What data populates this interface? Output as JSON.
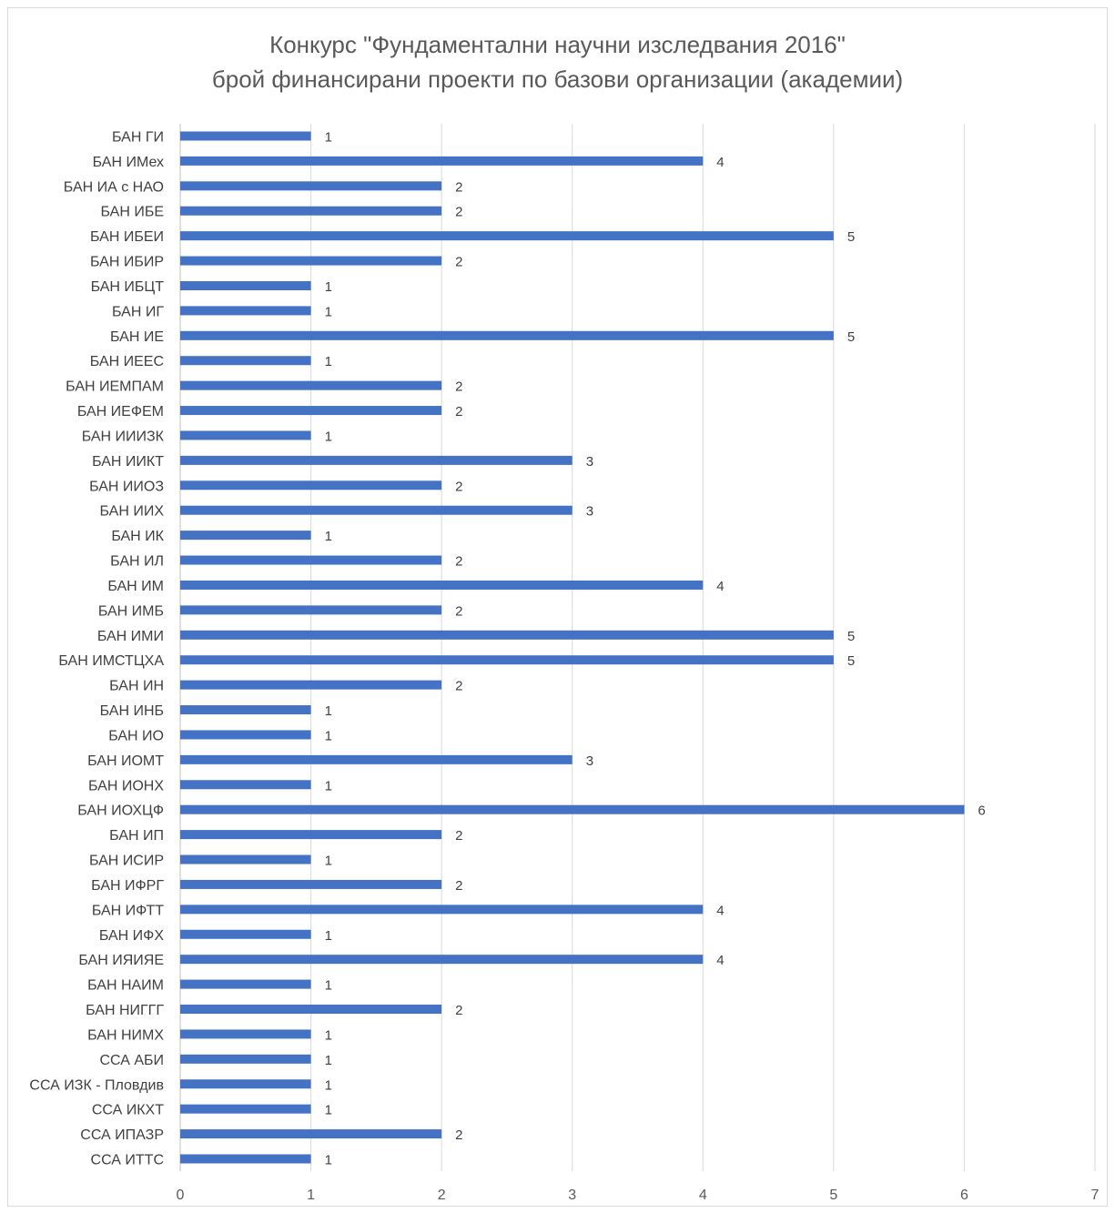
{
  "chart_data": {
    "type": "bar",
    "orientation": "horizontal",
    "title": "Конкурс \"Фундаментални научни изследвания 2016\"",
    "subtitle": "брой финансирани проекти по базови организации (академии)",
    "categories": [
      "БАН ГИ",
      "БАН ИМех",
      "БАН ИА с НАО",
      "БАН ИБЕ",
      "БАН ИБЕИ",
      "БАН ИБИР",
      "БАН ИБЦТ",
      "БАН ИГ",
      "БАН ИЕ",
      "БАН ИЕЕС",
      "БАН ИЕМПАМ",
      "БАН ИЕФЕМ",
      "БАН ИИИЗК",
      "БАН ИИКТ",
      "БАН ИИОЗ",
      "БАН ИИХ",
      "БАН ИК",
      "БАН ИЛ",
      "БАН ИМ",
      "БАН ИМБ",
      "БАН ИМИ",
      "БАН ИМСТЦХА",
      "БАН ИН",
      "БАН ИНБ",
      "БАН ИО",
      "БАН ИОМТ",
      "БАН ИОНХ",
      "БАН ИОХЦФ",
      "БАН ИП",
      "БАН ИСИР",
      "БАН ИФРГ",
      "БАН ИФТТ",
      "БАН ИФХ",
      "БАН ИЯИЯЕ",
      "БАН НАИМ",
      "БАН НИГГГ",
      "БАН НИМХ",
      "ССА АБИ",
      "ССА ИЗК - Пловдив",
      "ССА ИКХТ",
      "ССА ИПАЗР",
      "ССА ИТТС"
    ],
    "values": [
      1,
      4,
      2,
      2,
      5,
      2,
      1,
      1,
      5,
      1,
      2,
      2,
      1,
      3,
      2,
      3,
      1,
      2,
      4,
      2,
      5,
      5,
      2,
      1,
      1,
      3,
      1,
      6,
      2,
      1,
      2,
      4,
      1,
      4,
      1,
      2,
      1,
      1,
      1,
      1,
      2,
      1
    ],
    "xlim": [
      0,
      7
    ],
    "xticks": [
      0,
      1,
      2,
      3,
      4,
      5,
      6,
      7
    ],
    "grid": true,
    "data_labels": true,
    "bar_color": "#4472C4",
    "grid_color": "#d9d9d9"
  }
}
